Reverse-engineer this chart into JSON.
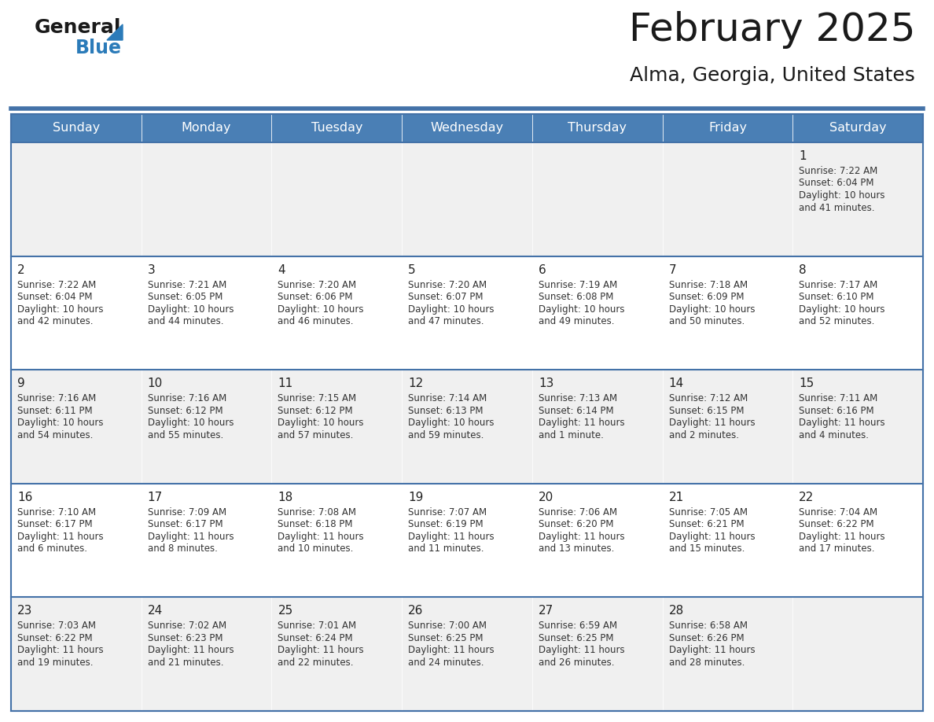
{
  "title": "February 2025",
  "subtitle": "Alma, Georgia, United States",
  "days_of_week": [
    "Sunday",
    "Monday",
    "Tuesday",
    "Wednesday",
    "Thursday",
    "Friday",
    "Saturday"
  ],
  "header_bg": "#4a7fb5",
  "header_text": "#ffffff",
  "cell_bg_odd": "#f0f0f0",
  "cell_bg_even": "#ffffff",
  "day_number_color": "#222222",
  "text_color": "#333333",
  "border_color": "#4472a8",
  "logo_general_color": "#1a1a1a",
  "logo_blue_color": "#2b7bb9",
  "calendar_data": [
    [
      {
        "day": null,
        "sunrise": null,
        "sunset": null,
        "daylight": null
      },
      {
        "day": null,
        "sunrise": null,
        "sunset": null,
        "daylight": null
      },
      {
        "day": null,
        "sunrise": null,
        "sunset": null,
        "daylight": null
      },
      {
        "day": null,
        "sunrise": null,
        "sunset": null,
        "daylight": null
      },
      {
        "day": null,
        "sunrise": null,
        "sunset": null,
        "daylight": null
      },
      {
        "day": null,
        "sunrise": null,
        "sunset": null,
        "daylight": null
      },
      {
        "day": 1,
        "sunrise": "7:22 AM",
        "sunset": "6:04 PM",
        "daylight": "10 hours and 41 minutes."
      }
    ],
    [
      {
        "day": 2,
        "sunrise": "7:22 AM",
        "sunset": "6:04 PM",
        "daylight": "10 hours and 42 minutes."
      },
      {
        "day": 3,
        "sunrise": "7:21 AM",
        "sunset": "6:05 PM",
        "daylight": "10 hours and 44 minutes."
      },
      {
        "day": 4,
        "sunrise": "7:20 AM",
        "sunset": "6:06 PM",
        "daylight": "10 hours and 46 minutes."
      },
      {
        "day": 5,
        "sunrise": "7:20 AM",
        "sunset": "6:07 PM",
        "daylight": "10 hours and 47 minutes."
      },
      {
        "day": 6,
        "sunrise": "7:19 AM",
        "sunset": "6:08 PM",
        "daylight": "10 hours and 49 minutes."
      },
      {
        "day": 7,
        "sunrise": "7:18 AM",
        "sunset": "6:09 PM",
        "daylight": "10 hours and 50 minutes."
      },
      {
        "day": 8,
        "sunrise": "7:17 AM",
        "sunset": "6:10 PM",
        "daylight": "10 hours and 52 minutes."
      }
    ],
    [
      {
        "day": 9,
        "sunrise": "7:16 AM",
        "sunset": "6:11 PM",
        "daylight": "10 hours and 54 minutes."
      },
      {
        "day": 10,
        "sunrise": "7:16 AM",
        "sunset": "6:12 PM",
        "daylight": "10 hours and 55 minutes."
      },
      {
        "day": 11,
        "sunrise": "7:15 AM",
        "sunset": "6:12 PM",
        "daylight": "10 hours and 57 minutes."
      },
      {
        "day": 12,
        "sunrise": "7:14 AM",
        "sunset": "6:13 PM",
        "daylight": "10 hours and 59 minutes."
      },
      {
        "day": 13,
        "sunrise": "7:13 AM",
        "sunset": "6:14 PM",
        "daylight": "11 hours and 1 minute."
      },
      {
        "day": 14,
        "sunrise": "7:12 AM",
        "sunset": "6:15 PM",
        "daylight": "11 hours and 2 minutes."
      },
      {
        "day": 15,
        "sunrise": "7:11 AM",
        "sunset": "6:16 PM",
        "daylight": "11 hours and 4 minutes."
      }
    ],
    [
      {
        "day": 16,
        "sunrise": "7:10 AM",
        "sunset": "6:17 PM",
        "daylight": "11 hours and 6 minutes."
      },
      {
        "day": 17,
        "sunrise": "7:09 AM",
        "sunset": "6:17 PM",
        "daylight": "11 hours and 8 minutes."
      },
      {
        "day": 18,
        "sunrise": "7:08 AM",
        "sunset": "6:18 PM",
        "daylight": "11 hours and 10 minutes."
      },
      {
        "day": 19,
        "sunrise": "7:07 AM",
        "sunset": "6:19 PM",
        "daylight": "11 hours and 11 minutes."
      },
      {
        "day": 20,
        "sunrise": "7:06 AM",
        "sunset": "6:20 PM",
        "daylight": "11 hours and 13 minutes."
      },
      {
        "day": 21,
        "sunrise": "7:05 AM",
        "sunset": "6:21 PM",
        "daylight": "11 hours and 15 minutes."
      },
      {
        "day": 22,
        "sunrise": "7:04 AM",
        "sunset": "6:22 PM",
        "daylight": "11 hours and 17 minutes."
      }
    ],
    [
      {
        "day": 23,
        "sunrise": "7:03 AM",
        "sunset": "6:22 PM",
        "daylight": "11 hours and 19 minutes."
      },
      {
        "day": 24,
        "sunrise": "7:02 AM",
        "sunset": "6:23 PM",
        "daylight": "11 hours and 21 minutes."
      },
      {
        "day": 25,
        "sunrise": "7:01 AM",
        "sunset": "6:24 PM",
        "daylight": "11 hours and 22 minutes."
      },
      {
        "day": 26,
        "sunrise": "7:00 AM",
        "sunset": "6:25 PM",
        "daylight": "11 hours and 24 minutes."
      },
      {
        "day": 27,
        "sunrise": "6:59 AM",
        "sunset": "6:25 PM",
        "daylight": "11 hours and 26 minutes."
      },
      {
        "day": 28,
        "sunrise": "6:58 AM",
        "sunset": "6:26 PM",
        "daylight": "11 hours and 28 minutes."
      },
      {
        "day": null,
        "sunrise": null,
        "sunset": null,
        "daylight": null
      }
    ]
  ]
}
